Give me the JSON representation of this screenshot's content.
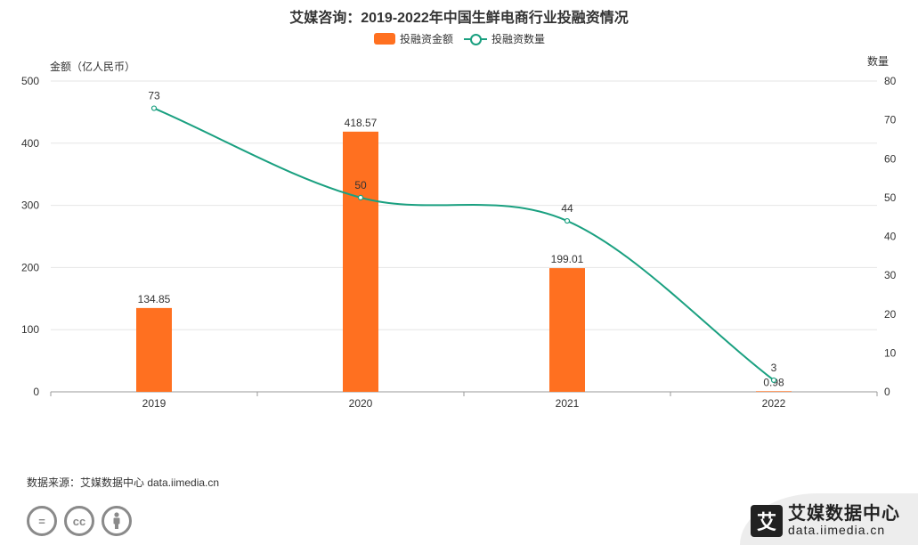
{
  "footer": {
    "source": "数据来源：艾媒数据中心 data.iimedia.cn",
    "brand_name": "艾媒数据中心",
    "brand_url": "data.iimedia.cn",
    "brand_mark": "艾",
    "license_icons": [
      "=",
      "cc",
      "person"
    ]
  },
  "colors": {
    "bar": "#ff7020",
    "line": "#1aa080",
    "axis": "#999999",
    "grid": "#e6e6e6"
  },
  "chart_data": {
    "type": "bar",
    "title": "艾媒咨询：2019-2022年中国生鲜电商行业投融资情况",
    "categories": [
      "2019",
      "2020",
      "2021",
      "2022"
    ],
    "y_left": {
      "label": "金额（亿人民币）",
      "ylim": [
        0,
        500
      ],
      "ticks": [
        0,
        100,
        200,
        300,
        400,
        500
      ]
    },
    "y_right": {
      "label": "数量",
      "ylim": [
        0,
        80
      ],
      "ticks": [
        0,
        10,
        20,
        30,
        40,
        50,
        60,
        70,
        80
      ]
    },
    "series": [
      {
        "name": "投融资金额",
        "type": "bar",
        "axis": "left",
        "values": [
          134.85,
          418.57,
          199.01,
          0.98
        ],
        "labels": [
          "134.85",
          "418.57",
          "199.01",
          "0.98"
        ]
      },
      {
        "name": "投融资数量",
        "type": "line",
        "axis": "right",
        "smooth": true,
        "values": [
          73,
          50,
          44,
          3
        ],
        "labels": [
          "73",
          "50",
          "44",
          "3"
        ]
      }
    ],
    "grid": true,
    "legend": "top-center"
  }
}
